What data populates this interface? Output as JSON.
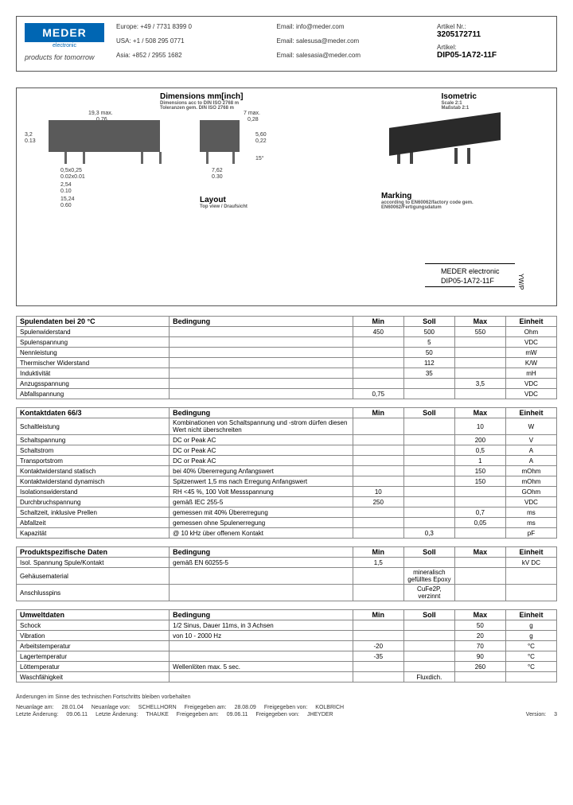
{
  "header": {
    "logo_main": "MEDER",
    "logo_sub": "electronic",
    "tagline": "products for tomorrow",
    "contacts": {
      "eu_phone": "Europe: +49 / 7731 8399 0",
      "eu_email": "Email: info@meder.com",
      "usa_phone": "USA: +1 / 508 295 0771",
      "usa_email": "Email: salesusa@meder.com",
      "asia_phone": "Asia: +852 / 2955 1682",
      "asia_email": "Email: salesasia@meder.com"
    },
    "article_nr_label": "Artikel Nr.:",
    "article_nr": "3205172711",
    "article_label": "Artikel:",
    "article": "DIP05-1A72-11F"
  },
  "diagram": {
    "dim_title": "Dimensions mm[inch]",
    "dim_sub1": "Dimensions acc to DIN ISO 2768 m",
    "dim_sub2": "Toleranzen gem. DIN ISO 2768 m",
    "iso_title": "Isometric",
    "iso_sub1": "Scale 2:1",
    "iso_sub2": "Maßstab 2:1",
    "layout_title": "Layout",
    "layout_sub": "Top view / Draufsicht",
    "marking_title": "Marking",
    "marking_sub": "according to EN60062/factory code gem. EN60062/Fertigungsdatum",
    "marking_line1": "MEDER electronic",
    "marking_line2": "DIP05-1A72-11F",
    "marking_side": "YW/P",
    "d_w": "19,3 max.",
    "d_w_in": "0,76",
    "d_h": "7 max.",
    "d_h_in": "0,28",
    "d_s1": "0,5x0,25",
    "d_s2": "0.02x0.01",
    "d_p1": "2,54",
    "d_p1_in": "0.10",
    "d_p2": "15,24",
    "d_p2_in": "0.60",
    "d_side_h": "5,60",
    "d_side_h_in": "0,22",
    "d_pin": "3,2",
    "d_pin_in": "0.13",
    "d_pitch": "7,62",
    "d_pitch_in": "0.30",
    "d_angle": "15°"
  },
  "tables": [
    {
      "title": "Spulendaten bei 20 °C",
      "cond": "Bedingung",
      "cols": [
        "Min",
        "Soll",
        "Max",
        "Einheit"
      ],
      "rows": [
        [
          "Spulenwiderstand",
          "",
          "450",
          "500",
          "550",
          "Ohm"
        ],
        [
          "Spulenspannung",
          "",
          "",
          "5",
          "",
          "VDC"
        ],
        [
          "Nennleistung",
          "",
          "",
          "50",
          "",
          "mW"
        ],
        [
          "Thermischer Widerstand",
          "",
          "",
          "112",
          "",
          "K/W"
        ],
        [
          "Induktivität",
          "",
          "",
          "35",
          "",
          "mH"
        ],
        [
          "Anzugsspannung",
          "",
          "",
          "",
          "3,5",
          "VDC"
        ],
        [
          "Abfallspannung",
          "",
          "0,75",
          "",
          "",
          "VDC"
        ]
      ]
    },
    {
      "title": "Kontaktdaten 66/3",
      "cond": "Bedingung",
      "cols": [
        "Min",
        "Soll",
        "Max",
        "Einheit"
      ],
      "rows": [
        [
          "Schaltleistung",
          "Kombinationen von Schaltspannung und -strom dürfen diesen Wert nicht überschreiten",
          "",
          "",
          "10",
          "W"
        ],
        [
          "Schaltspannung",
          "DC or Peak AC",
          "",
          "",
          "200",
          "V"
        ],
        [
          "Schaltstrom",
          "DC or Peak AC",
          "",
          "",
          "0,5",
          "A"
        ],
        [
          "Transportstrom",
          "DC or Peak AC",
          "",
          "",
          "1",
          "A"
        ],
        [
          "Kontaktwiderstand statisch",
          "bei 40% Übererregung Anfangswert",
          "",
          "",
          "150",
          "mOhm"
        ],
        [
          "Kontaktwiderstand dynamisch",
          "Spitzenwert 1,5 ms nach Erregung Anfangswert",
          "",
          "",
          "150",
          "mOhm"
        ],
        [
          "Isolationswiderstand",
          "RH <45 %, 100 Volt Messspannung",
          "10",
          "",
          "",
          "GOhm"
        ],
        [
          "Durchbruchspannung",
          "gemäß IEC 255-5",
          "250",
          "",
          "",
          "VDC"
        ],
        [
          "Schaltzeit, inklusive Prellen",
          "gemessen mit 40% Übererregung",
          "",
          "",
          "0,7",
          "ms"
        ],
        [
          "Abfallzeit",
          "gemessen ohne Spulenerregung",
          "",
          "",
          "0,05",
          "ms"
        ],
        [
          "Kapazität",
          "@ 10 kHz über offenem Kontakt",
          "",
          "0,3",
          "",
          "pF"
        ]
      ]
    },
    {
      "title": "Produktspezifische Daten",
      "cond": "Bedingung",
      "cols": [
        "Min",
        "Soll",
        "Max",
        "Einheit"
      ],
      "rows": [
        [
          "Isol. Spannung Spule/Kontakt",
          "gemäß EN 60255-5",
          "1,5",
          "",
          "",
          "kV DC"
        ],
        [
          "Gehäusematerial",
          "",
          "",
          "mineralisch gefülltes Epoxy",
          "",
          ""
        ],
        [
          "Anschlusspins",
          "",
          "",
          "CuFe2P, verzinnt",
          "",
          ""
        ]
      ]
    },
    {
      "title": "Umweltdaten",
      "cond": "Bedingung",
      "cols": [
        "Min",
        "Soll",
        "Max",
        "Einheit"
      ],
      "rows": [
        [
          "Schock",
          "1/2 Sinus, Dauer 11ms, in 3 Achsen",
          "",
          "",
          "50",
          "g"
        ],
        [
          "Vibration",
          "von 10 - 2000 Hz",
          "",
          "",
          "20",
          "g"
        ],
        [
          "Arbeitstemperatur",
          "",
          "-20",
          "",
          "70",
          "°C"
        ],
        [
          "Lagertemperatur",
          "",
          "-35",
          "",
          "90",
          "°C"
        ],
        [
          "Löttemperatur",
          "Wellenlöten max. 5 sec.",
          "",
          "",
          "260",
          "°C"
        ],
        [
          "Waschfähigkeit",
          "",
          "",
          "Fluxdich.",
          "",
          ""
        ]
      ]
    }
  ],
  "footer": {
    "note": "Änderungen im Sinne des technischen Fortschritts bleiben vorbehalten",
    "r1_l1": "Neuanlage am:",
    "r1_v1": "28.01.04",
    "r1_l2": "Neuanlage von:",
    "r1_v2": "SCHELLHORN",
    "r1_l3": "Freigegeben am:",
    "r1_v3": "28.08.09",
    "r1_l4": "Freigegeben von:",
    "r1_v4": "KOLBRICH",
    "r2_l1": "Letzte Änderung:",
    "r2_v1": "09.06.11",
    "r2_l2": "Letzte Änderung:",
    "r2_v2": "THAUKE",
    "r2_l3": "Freigegeben am:",
    "r2_v3": "09.06.11",
    "r2_l4": "Freigegeben von:",
    "r2_v4": "JHEYDER",
    "ver_l": "Version:",
    "ver_v": "3"
  }
}
